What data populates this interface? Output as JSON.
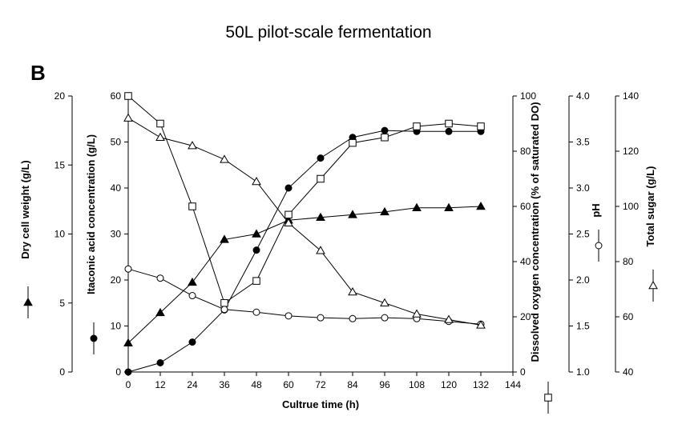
{
  "chart_data": {
    "type": "line",
    "title": "50L pilot-scale fermentation",
    "panel_label": "B",
    "xlabel": "Cultrue time (h)",
    "xlim": [
      0,
      144
    ],
    "xticks": [
      0,
      12,
      24,
      36,
      48,
      60,
      72,
      84,
      96,
      108,
      120,
      132,
      144
    ],
    "axes": [
      {
        "id": "dcw",
        "label": "Dry cell weight (g/L)",
        "ylim": [
          0,
          20
        ],
        "ticks": [
          0,
          5,
          10,
          15,
          20
        ],
        "side": "left-outer",
        "marker": "filled-triangle"
      },
      {
        "id": "ia",
        "label": "Itaconic acid concentration (g/L)",
        "ylim": [
          0,
          60
        ],
        "ticks": [
          0,
          10,
          20,
          30,
          40,
          50,
          60
        ],
        "side": "left-inner",
        "marker": "filled-circle"
      },
      {
        "id": "do",
        "label": "Dissolved oxygen concentration (% of saturated DO)",
        "ylim": [
          0,
          100
        ],
        "ticks": [
          0,
          20,
          40,
          60,
          80,
          100
        ],
        "side": "right-1",
        "marker": "open-square"
      },
      {
        "id": "ph",
        "label": "pH",
        "ylim": [
          1.0,
          4.0
        ],
        "ticks": [
          "1.0",
          "1.5",
          "2.0",
          "2.5",
          "3.0",
          "3.5",
          "4.0"
        ],
        "side": "right-2",
        "marker": "open-circle"
      },
      {
        "id": "sugar",
        "label": "Total sugar (g/L)",
        "ylim": [
          40,
          140
        ],
        "ticks": [
          40,
          60,
          80,
          100,
          120,
          140
        ],
        "side": "right-3",
        "marker": "open-triangle"
      }
    ],
    "series": [
      {
        "axis": "dcw",
        "marker": "filled-triangle",
        "x": [
          0,
          12,
          24,
          36,
          48,
          60,
          72,
          84,
          96,
          108,
          120,
          132
        ],
        "y": [
          2.1,
          4.3,
          6.5,
          9.6,
          10.0,
          11.0,
          11.2,
          11.4,
          11.6,
          11.9,
          11.9,
          12.0
        ]
      },
      {
        "axis": "ia",
        "marker": "filled-circle",
        "x": [
          0,
          12,
          24,
          36,
          48,
          60,
          72,
          84,
          96,
          108,
          120,
          132
        ],
        "y": [
          0,
          2.0,
          6.5,
          13.5,
          26.5,
          40.0,
          46.5,
          51.0,
          52.5,
          52.3,
          52.3,
          52.3
        ]
      },
      {
        "axis": "do",
        "marker": "open-square",
        "x": [
          0,
          12,
          24,
          36,
          48,
          60,
          72,
          84,
          96,
          108,
          120,
          132
        ],
        "y": [
          100,
          90,
          60,
          25,
          33,
          57,
          70,
          83,
          85,
          89,
          90,
          89
        ]
      },
      {
        "axis": "ph",
        "marker": "open-circle",
        "x": [
          0,
          12,
          24,
          36,
          48,
          60,
          72,
          84,
          96,
          108,
          120,
          132
        ],
        "y": [
          2.12,
          2.02,
          1.83,
          1.68,
          1.65,
          1.61,
          1.59,
          1.58,
          1.59,
          1.58,
          1.55,
          1.52
        ]
      },
      {
        "axis": "sugar",
        "marker": "open-triangle",
        "x": [
          0,
          12,
          24,
          36,
          48,
          60,
          72,
          84,
          96,
          108,
          120,
          132
        ],
        "y": [
          132,
          125,
          122,
          117,
          109,
          94,
          84,
          69,
          65,
          61,
          59,
          57
        ]
      }
    ]
  }
}
